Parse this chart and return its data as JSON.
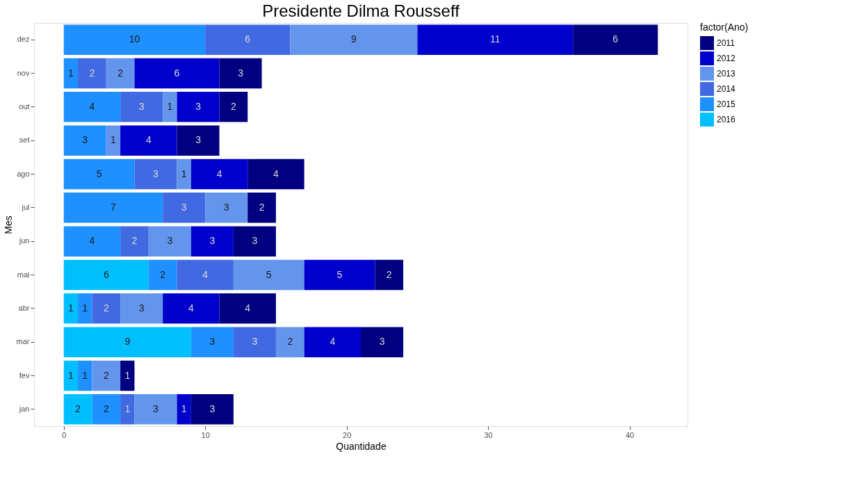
{
  "chart_data": {
    "type": "bar",
    "orientation": "horizontal",
    "stacked": true,
    "title": "Presidente  Dilma Rousseff",
    "xlabel": "Quantidade",
    "ylabel": "Mes",
    "legend_title": "factor(Ano)",
    "legend": "right",
    "grid": true,
    "data_labels": true,
    "categories": [
      "dez",
      "nov",
      "out",
      "set",
      "ago",
      "jul",
      "jun",
      "mai",
      "abr",
      "mar",
      "fev",
      "jan"
    ],
    "xlim": [
      -2.1,
      44.1
    ],
    "xticks": [
      0,
      10,
      20,
      30,
      40
    ],
    "series": [
      {
        "name": "2016",
        "color": "#00bfff",
        "values": [
          null,
          null,
          null,
          null,
          null,
          null,
          null,
          6,
          1,
          9,
          1,
          2
        ]
      },
      {
        "name": "2015",
        "color": "#1e90ff",
        "values": [
          10,
          1,
          4,
          3,
          5,
          7,
          4,
          2,
          1,
          3,
          1,
          2
        ]
      },
      {
        "name": "2014",
        "color": "#4169e1",
        "values": [
          6,
          2,
          3,
          null,
          3,
          3,
          2,
          4,
          2,
          3,
          null,
          1
        ]
      },
      {
        "name": "2013",
        "color": "#6495ed",
        "values": [
          9,
          2,
          1,
          1,
          1,
          3,
          3,
          5,
          3,
          2,
          2,
          3
        ]
      },
      {
        "name": "2012",
        "color": "#0000cd",
        "values": [
          11,
          6,
          3,
          4,
          4,
          null,
          3,
          5,
          4,
          4,
          null,
          1
        ]
      },
      {
        "name": "2011",
        "color": "#000080",
        "values": [
          6,
          3,
          2,
          3,
          4,
          2,
          3,
          2,
          4,
          3,
          1,
          3
        ]
      }
    ]
  }
}
